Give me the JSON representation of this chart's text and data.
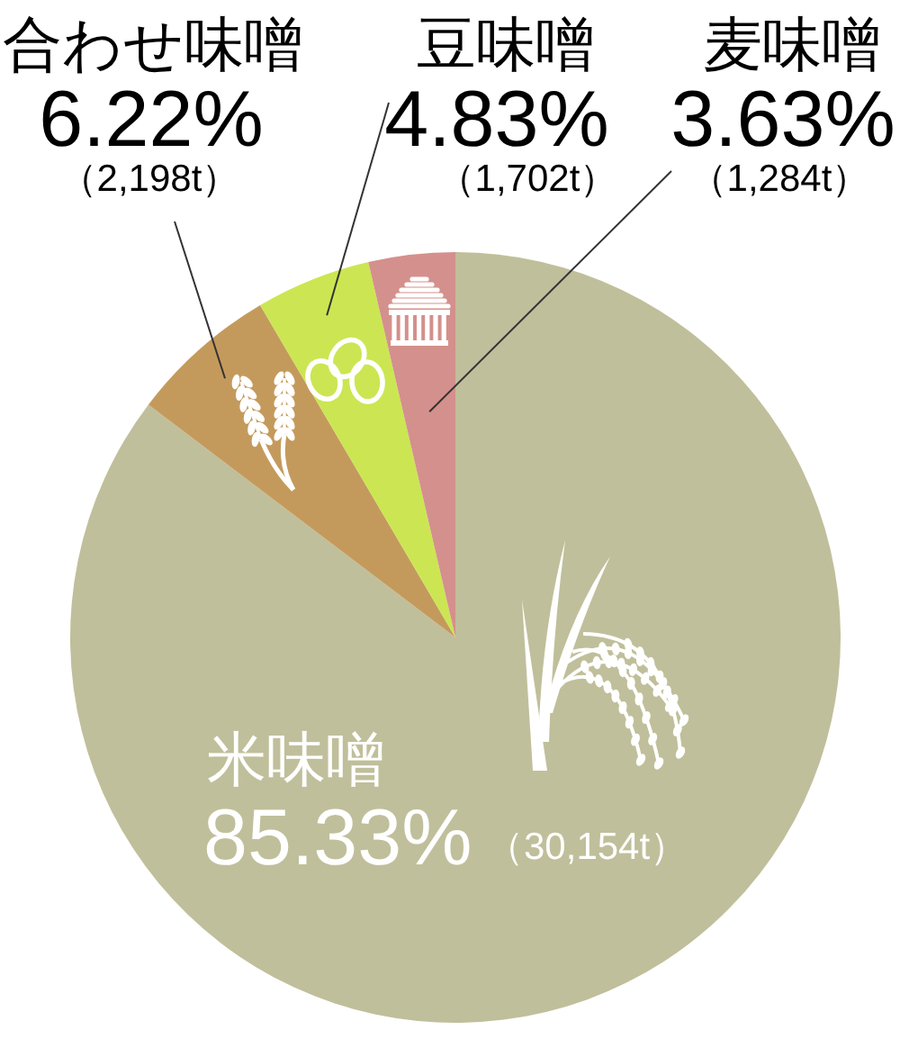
{
  "chart_data": {
    "type": "pie",
    "categories": [
      "米味噌",
      "合わせ味噌",
      "豆味噌",
      "麦味噌"
    ],
    "values": [
      85.33,
      6.22,
      4.83,
      3.63
    ],
    "colors": [
      "#c0bf9b",
      "#c49a5c",
      "#cbe652",
      "#d4908c"
    ],
    "value_labels": [
      "85.33%",
      "6.22%",
      "4.83%",
      "3.63%"
    ],
    "annotations": [
      "（30,154t）",
      "（2,198t）",
      "（1,702t）",
      "（1,284t）"
    ]
  }
}
